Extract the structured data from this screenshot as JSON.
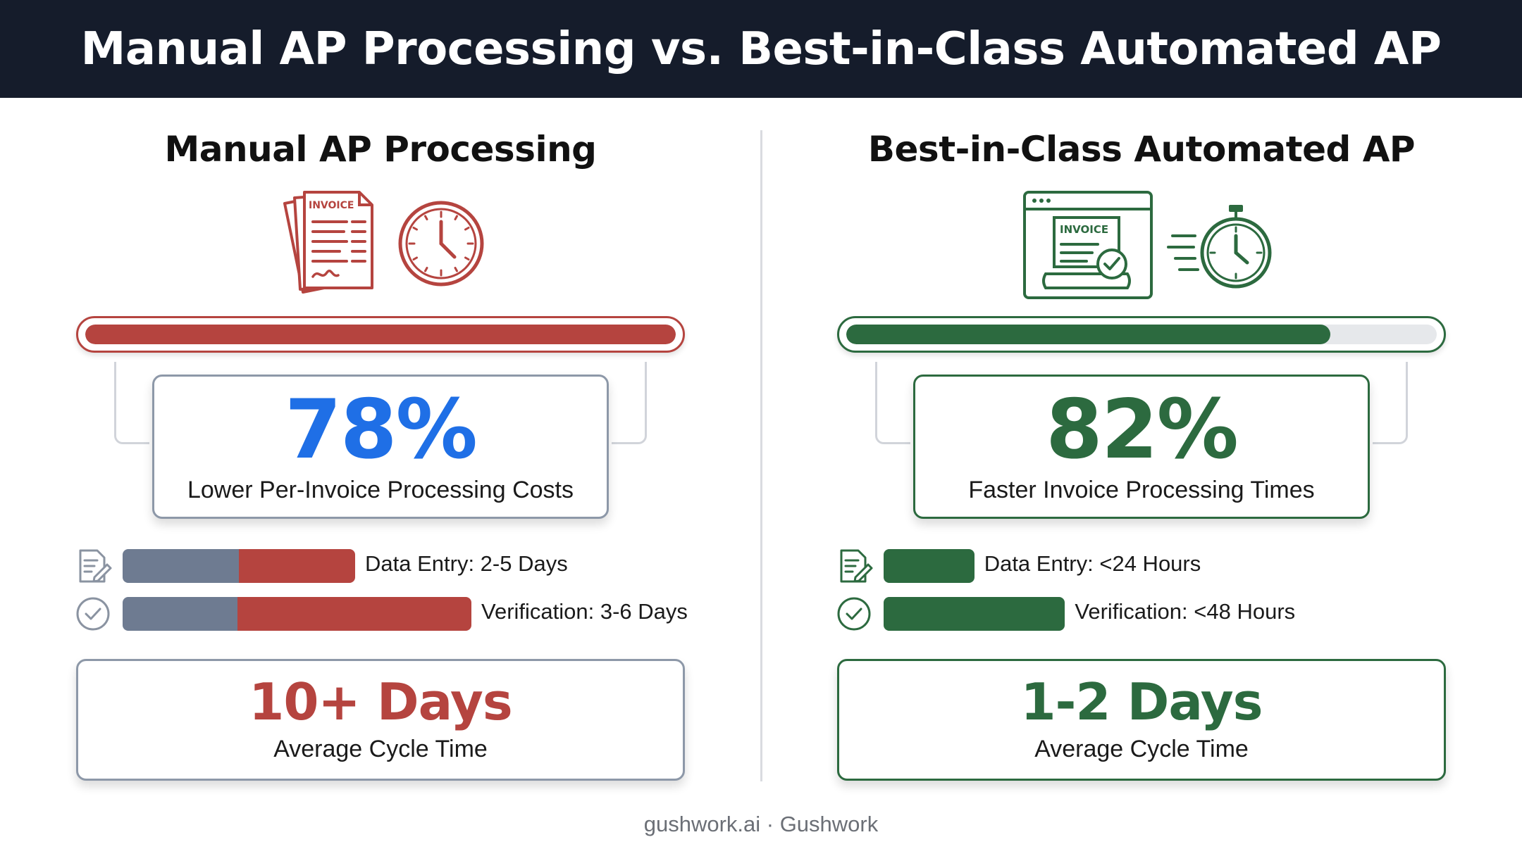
{
  "title": "Manual AP Processing vs. Best-in-Class Automated AP",
  "colors": {
    "header_bg": "#151c2b",
    "manual_accent": "#b5443f",
    "manual_stat": "#1f6fe6",
    "auto_accent": "#2c6a3f",
    "neutral_segment": "#6e7b91",
    "track": "#e6e8eb"
  },
  "manual": {
    "heading": "Manual AP Processing",
    "icons": [
      "invoice-stack-icon",
      "clock-icon"
    ],
    "progress": 1.0,
    "stat": {
      "value": "78%",
      "label": "Lower Per-Invoice Processing Costs"
    },
    "steps": [
      {
        "icon": "document-edit-icon",
        "label": "Data Entry: 2-5 Days",
        "neutral_share": 0.5,
        "total_share": 1.0
      },
      {
        "icon": "check-circle-icon",
        "label": "Verification: 3-6 Days",
        "neutral_share": 0.33,
        "total_share": 1.5
      }
    ],
    "cycle": {
      "value": "10+ Days",
      "label": "Average Cycle Time"
    }
  },
  "automated": {
    "heading": "Best-in-Class Automated AP",
    "icons": [
      "browser-invoice-check-icon",
      "fast-stopwatch-icon"
    ],
    "progress": 0.82,
    "stat": {
      "value": "82%",
      "label": "Faster Invoice Processing Times"
    },
    "steps": [
      {
        "icon": "document-edit-icon",
        "label": "Data Entry: <24 Hours",
        "neutral_share": 0,
        "total_share": 0.39
      },
      {
        "icon": "check-circle-icon",
        "label": "Verification: <48 Hours",
        "neutral_share": 0,
        "total_share": 0.78
      }
    ],
    "cycle": {
      "value": "1-2 Days",
      "label": "Average Cycle Time"
    }
  },
  "footer": "gushwork.ai · Gushwork"
}
